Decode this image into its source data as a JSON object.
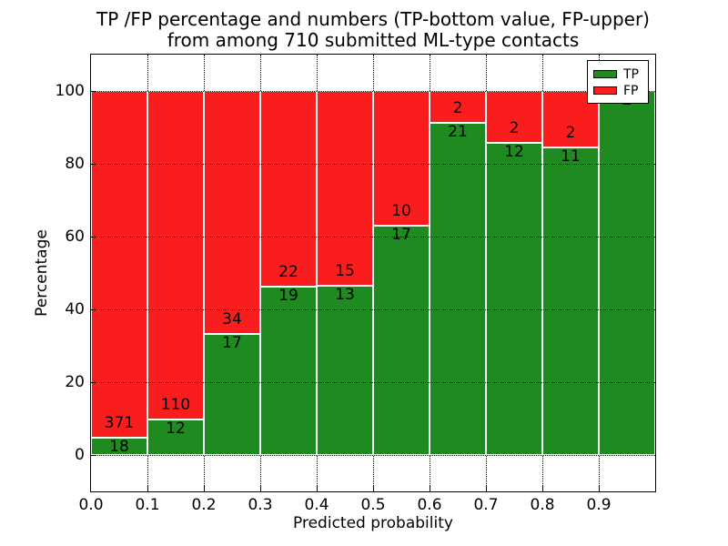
{
  "chart_data": {
    "type": "bar",
    "stacking": "percentage",
    "title_line1": "TP /FP percentage and numbers (TP-bottom value, FP-upper)",
    "title_line2": "from among 710 submitted ML-type contacts",
    "xlabel": "Predicted probability",
    "ylabel": "Percentage",
    "total_contacts": 710,
    "xlim": [
      0.0,
      1.0
    ],
    "ylim": [
      -10,
      110
    ],
    "x_ticks": [
      "0.0",
      "0.1",
      "0.2",
      "0.3",
      "0.4",
      "0.5",
      "0.6",
      "0.7",
      "0.8",
      "0.9"
    ],
    "y_ticks": [
      0,
      20,
      40,
      60,
      80,
      100
    ],
    "grid": true,
    "legend_position": "upper right",
    "legend": [
      {
        "label": "TP",
        "color": "#1f8a1f"
      },
      {
        "label": "FP",
        "color": "#fa1d1d"
      }
    ],
    "colors": {
      "tp": "#1f8a1f",
      "fp": "#fa1d1d"
    },
    "bins": [
      {
        "range": "0.0-0.1",
        "tp": 18,
        "fp": 371
      },
      {
        "range": "0.1-0.2",
        "tp": 12,
        "fp": 110
      },
      {
        "range": "0.2-0.3",
        "tp": 17,
        "fp": 34
      },
      {
        "range": "0.3-0.4",
        "tp": 19,
        "fp": 22
      },
      {
        "range": "0.4-0.5",
        "tp": 13,
        "fp": 15
      },
      {
        "range": "0.5-0.6",
        "tp": 17,
        "fp": 10
      },
      {
        "range": "0.6-0.7",
        "tp": 21,
        "fp": 2
      },
      {
        "range": "0.7-0.8",
        "tp": 12,
        "fp": 2
      },
      {
        "range": "0.8-0.9",
        "tp": 11,
        "fp": 2
      },
      {
        "range": "0.9-1.0",
        "tp": 2,
        "fp": 0
      }
    ]
  }
}
